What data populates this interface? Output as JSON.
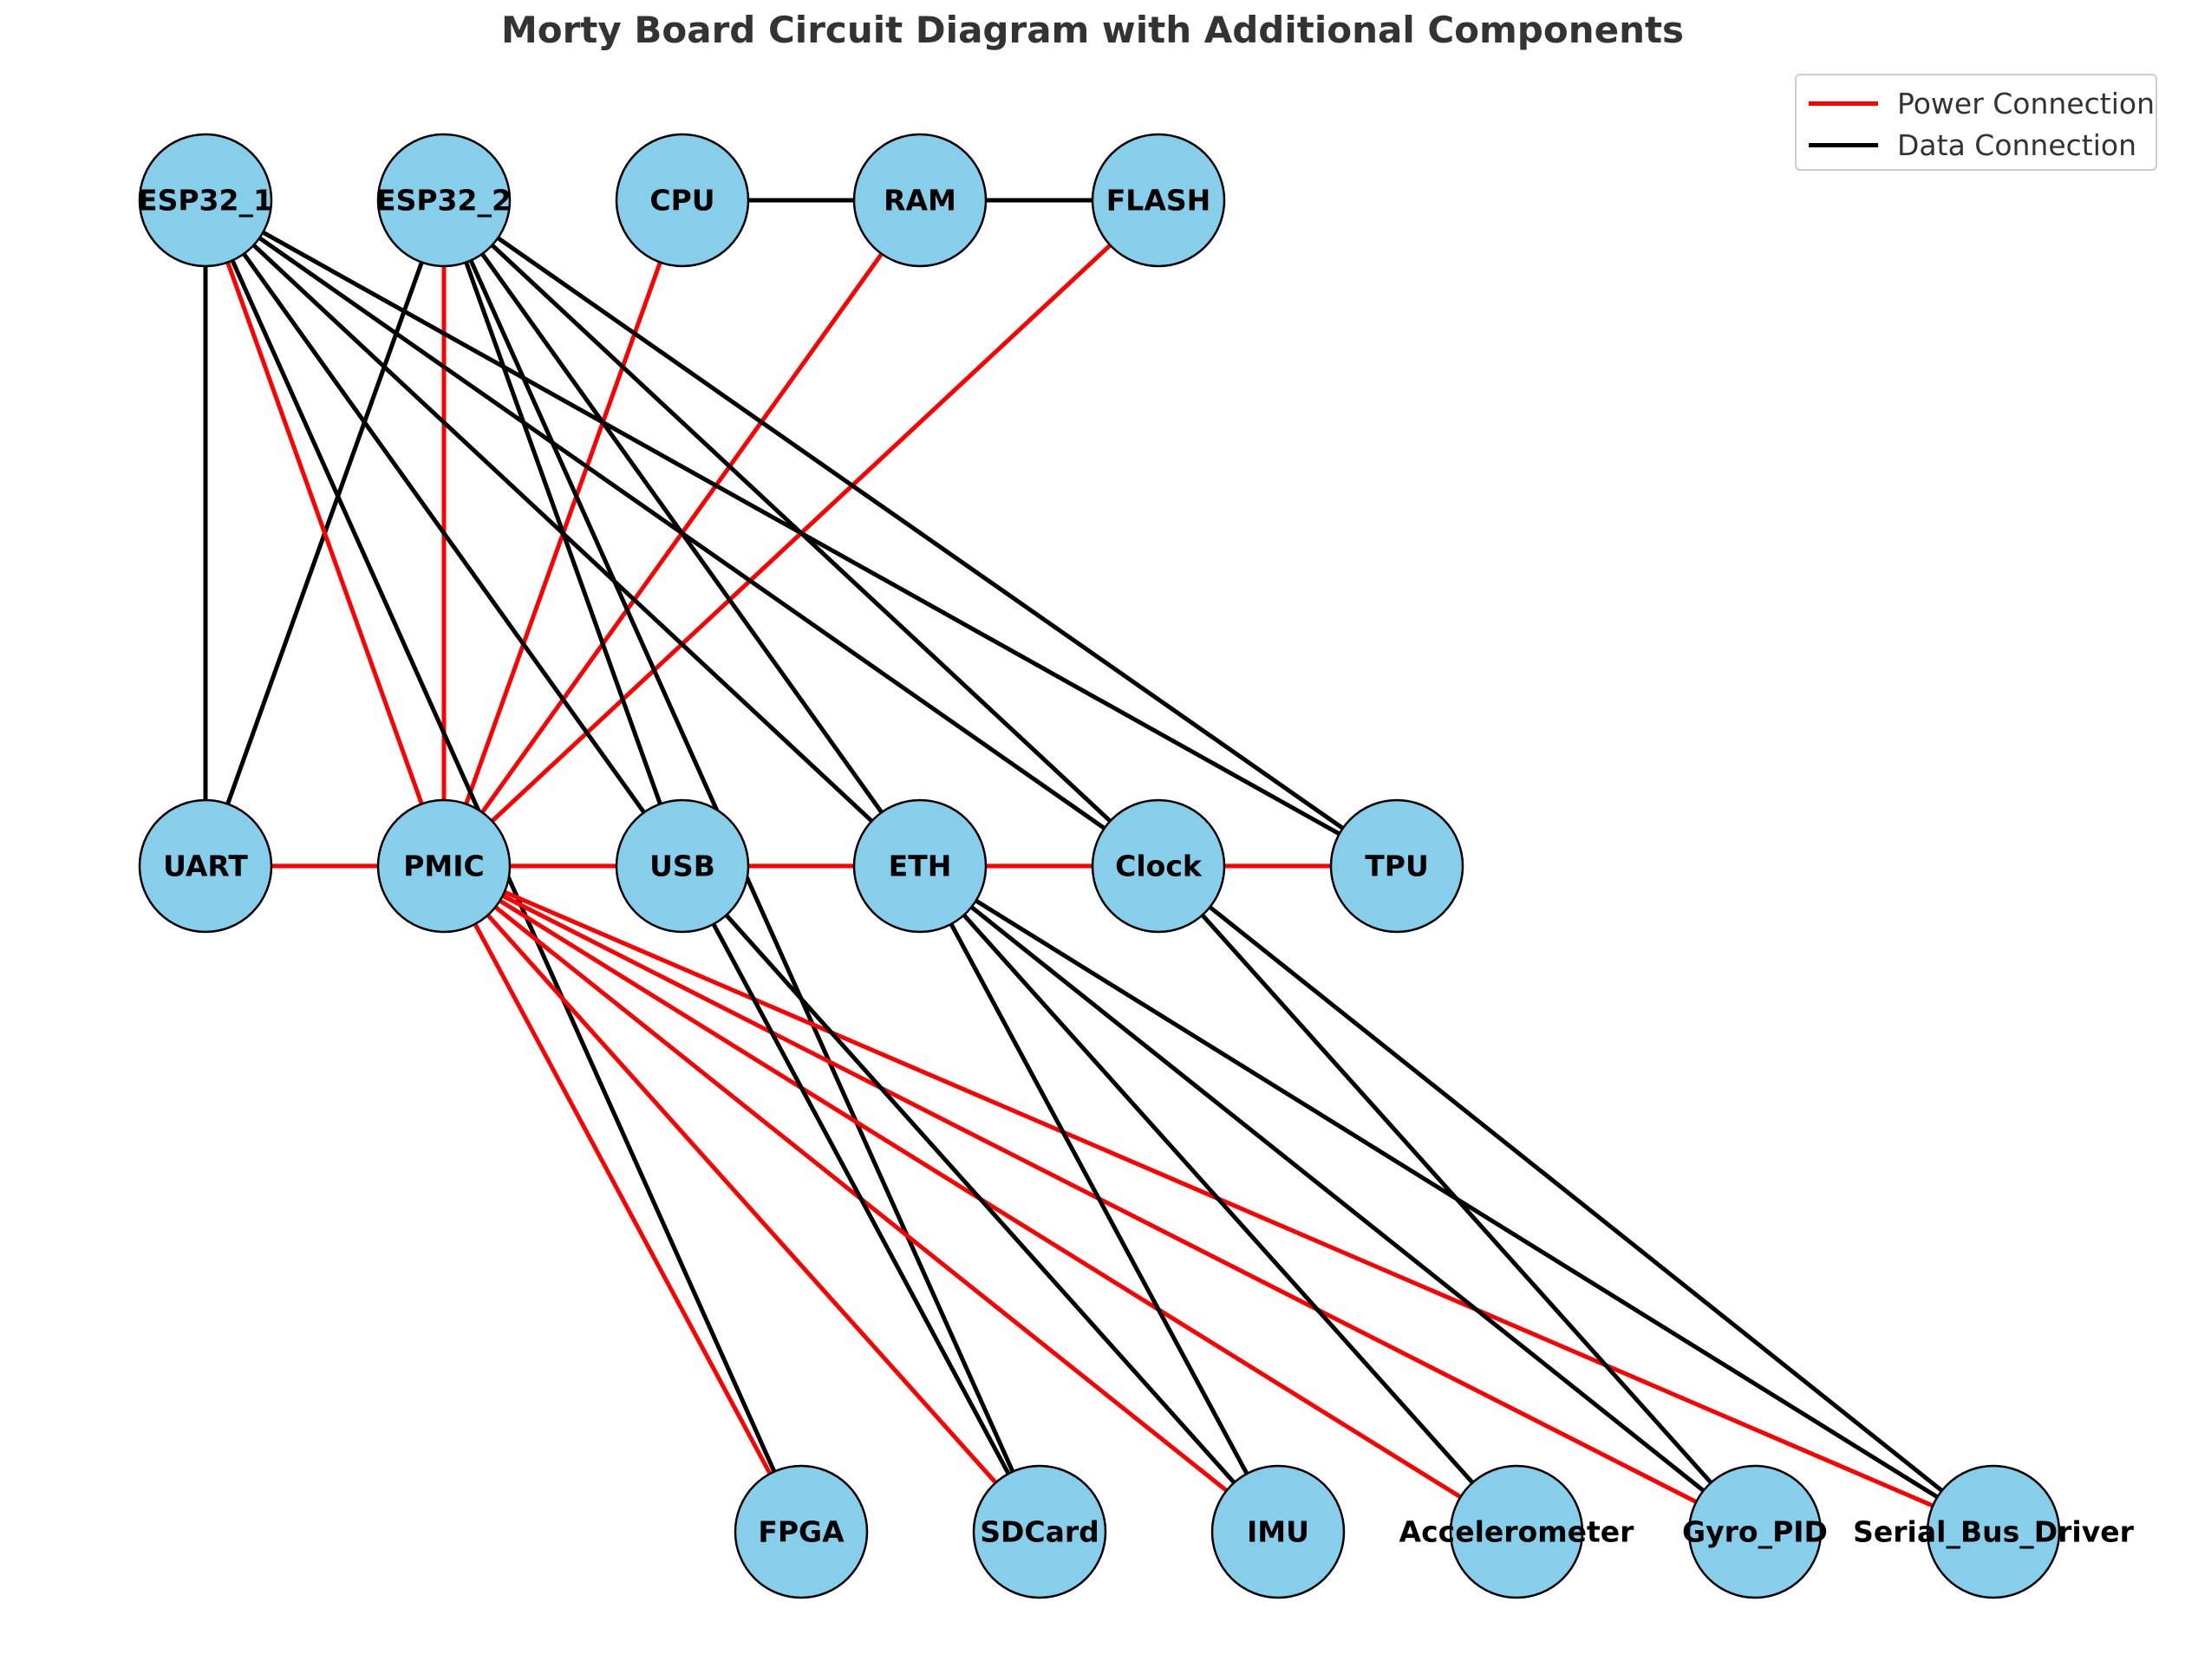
{
  "title": "Morty Board Circuit Diagram with Additional Components",
  "legend": {
    "power_label": "Power Connection",
    "data_label": "Data Connection"
  },
  "colors": {
    "power": "#ff0000",
    "data": "#000000",
    "node_fill": "#87ceeb",
    "node_stroke": "#000000",
    "title": "#333333"
  },
  "nodes": [
    {
      "id": "ESP32_1",
      "label": "ESP32_1"
    },
    {
      "id": "ESP32_2",
      "label": "ESP32_2"
    },
    {
      "id": "CPU",
      "label": "CPU"
    },
    {
      "id": "RAM",
      "label": "RAM"
    },
    {
      "id": "FLASH",
      "label": "FLASH"
    },
    {
      "id": "UART",
      "label": "UART"
    },
    {
      "id": "PMIC",
      "label": "PMIC"
    },
    {
      "id": "USB",
      "label": "USB"
    },
    {
      "id": "ETH",
      "label": "ETH"
    },
    {
      "id": "Clock",
      "label": "Clock"
    },
    {
      "id": "TPU",
      "label": "TPU"
    },
    {
      "id": "FPGA",
      "label": "FPGA"
    },
    {
      "id": "SDCard",
      "label": "SDCard"
    },
    {
      "id": "IMU",
      "label": "IMU"
    },
    {
      "id": "Accelerometer",
      "label": "Accelerometer"
    },
    {
      "id": "Gyro_PID",
      "label": "Gyro_PID"
    },
    {
      "id": "Serial_Bus_Driver",
      "label": "Serial_Bus_Driver"
    }
  ],
  "edges": [
    {
      "from": "CPU",
      "to": "RAM",
      "type": "data"
    },
    {
      "from": "RAM",
      "to": "FLASH",
      "type": "data"
    },
    {
      "from": "ESP32_1",
      "to": "UART",
      "type": "data"
    },
    {
      "from": "ESP32_2",
      "to": "UART",
      "type": "data"
    },
    {
      "from": "ESP32_1",
      "to": "PMIC",
      "type": "power"
    },
    {
      "from": "ESP32_2",
      "to": "PMIC",
      "type": "power"
    },
    {
      "from": "CPU",
      "to": "PMIC",
      "type": "power"
    },
    {
      "from": "RAM",
      "to": "PMIC",
      "type": "power"
    },
    {
      "from": "FLASH",
      "to": "PMIC",
      "type": "power"
    },
    {
      "from": "ESP32_1",
      "to": "USB",
      "type": "data"
    },
    {
      "from": "ESP32_1",
      "to": "ETH",
      "type": "data"
    },
    {
      "from": "ESP32_1",
      "to": "Clock",
      "type": "data"
    },
    {
      "from": "ESP32_1",
      "to": "TPU",
      "type": "data"
    },
    {
      "from": "ESP32_1",
      "to": "FPGA",
      "type": "data"
    },
    {
      "from": "ESP32_2",
      "to": "USB",
      "type": "data"
    },
    {
      "from": "ESP32_2",
      "to": "ETH",
      "type": "data"
    },
    {
      "from": "ESP32_2",
      "to": "Clock",
      "type": "data"
    },
    {
      "from": "ESP32_2",
      "to": "TPU",
      "type": "data"
    },
    {
      "from": "ESP32_2",
      "to": "SDCard",
      "type": "data"
    },
    {
      "from": "UART",
      "to": "PMIC",
      "type": "power"
    },
    {
      "from": "PMIC",
      "to": "USB",
      "type": "power"
    },
    {
      "from": "USB",
      "to": "ETH",
      "type": "power"
    },
    {
      "from": "ETH",
      "to": "Clock",
      "type": "power"
    },
    {
      "from": "Clock",
      "to": "TPU",
      "type": "power"
    },
    {
      "from": "PMIC",
      "to": "FPGA",
      "type": "power"
    },
    {
      "from": "PMIC",
      "to": "SDCard",
      "type": "power"
    },
    {
      "from": "PMIC",
      "to": "IMU",
      "type": "power"
    },
    {
      "from": "PMIC",
      "to": "Accelerometer",
      "type": "power"
    },
    {
      "from": "PMIC",
      "to": "Gyro_PID",
      "type": "power"
    },
    {
      "from": "PMIC",
      "to": "Serial_Bus_Driver",
      "type": "power"
    },
    {
      "from": "USB",
      "to": "SDCard",
      "type": "data"
    },
    {
      "from": "USB",
      "to": "IMU",
      "type": "data"
    },
    {
      "from": "ETH",
      "to": "IMU",
      "type": "data"
    },
    {
      "from": "ETH",
      "to": "Accelerometer",
      "type": "data"
    },
    {
      "from": "ETH",
      "to": "Gyro_PID",
      "type": "data"
    },
    {
      "from": "Clock",
      "to": "Gyro_PID",
      "type": "data"
    },
    {
      "from": "Clock",
      "to": "Serial_Bus_Driver",
      "type": "data"
    },
    {
      "from": "ETH",
      "to": "Serial_Bus_Driver",
      "type": "data"
    }
  ]
}
